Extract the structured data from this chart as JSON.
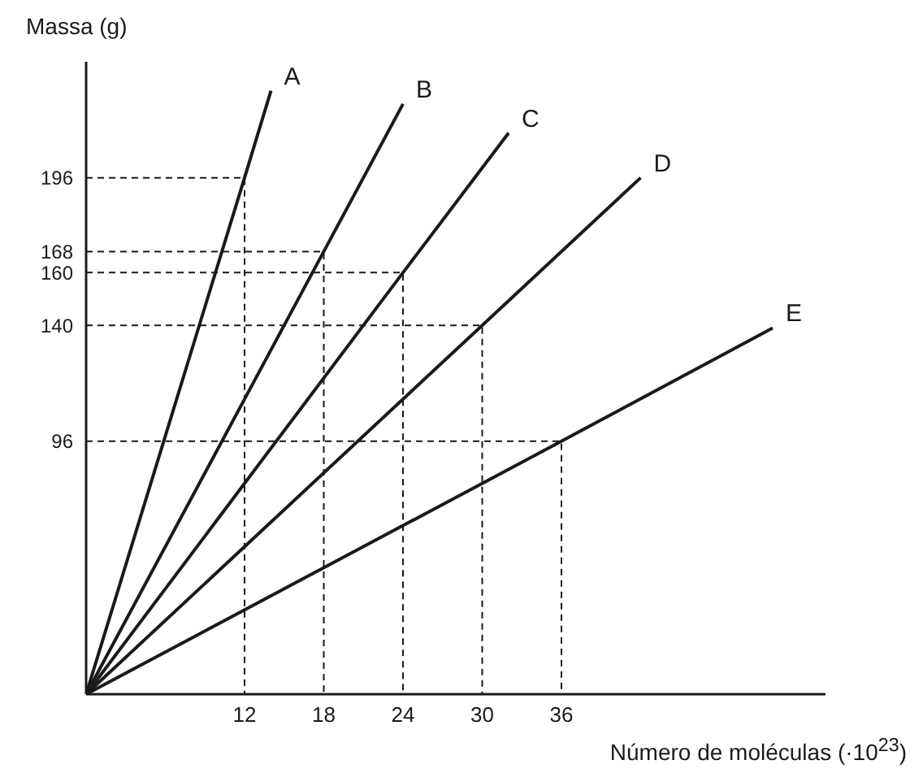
{
  "chart_data": {
    "type": "line",
    "xlabel": "Número de moléculas (·10$^{23}$)",
    "ylabel": "Massa (g)",
    "xlim": [
      0,
      56
    ],
    "ylim": [
      0,
      240
    ],
    "xticks": [
      12,
      18,
      24,
      30,
      36
    ],
    "yticks": [
      96,
      140,
      160,
      168,
      196
    ],
    "grid": false,
    "legend": false,
    "marker": "none",
    "line_style": "solid",
    "series": [
      {
        "name": "A",
        "color": "#1a1a1a",
        "x": [
          0,
          12,
          14
        ],
        "values": [
          0,
          196,
          229
        ]
      },
      {
        "name": "B",
        "color": "#1a1a1a",
        "x": [
          0,
          18,
          24
        ],
        "values": [
          0,
          168,
          224
        ]
      },
      {
        "name": "C",
        "color": "#1a1a1a",
        "x": [
          0,
          24,
          32
        ],
        "values": [
          0,
          160,
          213
        ]
      },
      {
        "name": "D",
        "color": "#1a1a1a",
        "x": [
          0,
          30,
          42
        ],
        "values": [
          0,
          140,
          196
        ]
      },
      {
        "name": "E",
        "color": "#1a1a1a",
        "x": [
          0,
          36,
          52
        ],
        "values": [
          0,
          96,
          139
        ]
      },
      {
        "color": "#1a1a1a",
        "line_style": "dashed",
        "x": [
          0,
          12,
          12
        ],
        "values": [
          196,
          196,
          0
        ]
      },
      {
        "color": "#1a1a1a",
        "line_style": "dashed",
        "x": [
          0,
          18,
          18
        ],
        "values": [
          168,
          168,
          0
        ]
      },
      {
        "color": "#1a1a1a",
        "line_style": "dashed",
        "x": [
          0,
          24,
          24
        ],
        "values": [
          160,
          160,
          0
        ]
      },
      {
        "color": "#1a1a1a",
        "line_style": "dashed",
        "x": [
          0,
          30,
          30
        ],
        "values": [
          140,
          140,
          0
        ]
      },
      {
        "color": "#1a1a1a",
        "line_style": "dashed",
        "x": [
          0,
          36,
          36
        ],
        "values": [
          96,
          96,
          0
        ]
      }
    ]
  }
}
